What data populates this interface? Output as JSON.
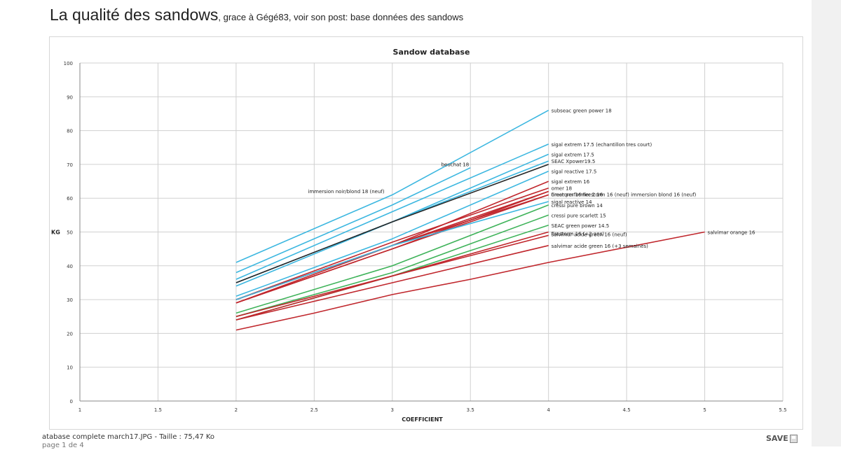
{
  "header": {
    "title": "La qualité des sandows",
    "subtitle": ", grace à Gégé83, voir son post: base données des sandows"
  },
  "footer": {
    "file_info": "atabase complete march17.JPG - Taille : 75,47 Ko",
    "page_info": "page 1 de 4",
    "save_label": "SAVE"
  },
  "colors": {
    "blue": "#3cb7e0",
    "black": "#262626",
    "red": "#c0272d",
    "green": "#3fb35a",
    "grid": "#d0d0d0"
  },
  "chart_data": {
    "type": "line",
    "title": "Sandow database",
    "xlabel": "COEFFICIENT",
    "ylabel": "KG",
    "xlim": [
      1,
      5.5
    ],
    "ylim": [
      0,
      100
    ],
    "xticks": [
      1,
      1.5,
      2,
      2.5,
      3,
      3.5,
      4,
      4.5,
      5,
      5.5
    ],
    "xtick_labels": [
      "1",
      "1.5",
      "2",
      "2.5",
      "3",
      "3.5",
      "4",
      "4.5",
      "5",
      "5.5"
    ],
    "yticks": [
      0,
      10,
      20,
      30,
      40,
      50,
      60,
      70,
      80,
      90,
      100
    ],
    "ytick_labels": [
      "0",
      "10",
      "20",
      "30",
      "40",
      "50",
      "60",
      "70",
      "80",
      "90",
      "100"
    ],
    "grid": true,
    "series": [
      {
        "name": "subseac green power 18",
        "color": "blue",
        "x": [
          2,
          3,
          4
        ],
        "y": [
          41,
          61,
          86
        ]
      },
      {
        "name": "beuchat 18",
        "color": "blue",
        "x": [
          2,
          3,
          3.5
        ],
        "y": [
          38,
          58,
          69
        ]
      },
      {
        "name": "sigal extrem 17.5 (echantillon tres court)",
        "color": "blue",
        "x": [
          2,
          3,
          4
        ],
        "y": [
          36,
          56,
          76
        ]
      },
      {
        "name": "sigal extrem 17.5",
        "color": "blue",
        "x": [
          2,
          3,
          4
        ],
        "y": [
          35,
          53,
          73
        ]
      },
      {
        "name": "SEAC Xpower19.5",
        "color": "blue",
        "x": [
          2,
          3,
          4
        ],
        "y": [
          34,
          53,
          71
        ]
      },
      {
        "name": "immersion noir/blond 18 (neuf)",
        "color": "black",
        "x": [
          2,
          3,
          4
        ],
        "y": [
          35,
          53,
          70
        ]
      },
      {
        "name": "sigal reactive 17.5",
        "color": "blue",
        "x": [
          2,
          3,
          4
        ],
        "y": [
          31,
          48,
          68
        ]
      },
      {
        "name": "sigal extrem 16",
        "color": "red",
        "x": [
          2,
          3,
          4
        ],
        "y": [
          30,
          46,
          65
        ]
      },
      {
        "name": "omer 18",
        "color": "red",
        "x": [
          2,
          3,
          4
        ],
        "y": [
          30,
          47,
          63
        ]
      },
      {
        "name": "firestorm 16",
        "color": "red",
        "x": [
          2,
          3,
          4
        ],
        "y": [
          29,
          45,
          62
        ]
      },
      {
        "name": "firestorm 16 (neuf)",
        "color": "red",
        "x": [
          2,
          3,
          4
        ],
        "y": [
          30,
          46,
          61
        ]
      },
      {
        "name": "immersion blond 16 (neuf)",
        "color": "red",
        "x": [
          2,
          3,
          4
        ],
        "y": [
          29,
          46,
          62
        ]
      },
      {
        "name": "omer performer 2 16",
        "color": "red",
        "x": [
          2,
          3,
          4
        ],
        "y": [
          29,
          45,
          61
        ]
      },
      {
        "name": "sigal reactive 14",
        "color": "blue",
        "x": [
          2,
          3,
          4
        ],
        "y": [
          30,
          46,
          59
        ]
      },
      {
        "name": "cressi pure brown 14",
        "color": "green",
        "x": [
          2,
          3,
          4
        ],
        "y": [
          26,
          40,
          58
        ]
      },
      {
        "name": "cressi pure scarlett 15",
        "color": "green",
        "x": [
          2,
          3,
          4
        ],
        "y": [
          25,
          38,
          55
        ]
      },
      {
        "name": "SEAC green power 14.5",
        "color": "green",
        "x": [
          2,
          3,
          4
        ],
        "y": [
          24,
          37,
          52
        ]
      },
      {
        "name": "firestorm 16 (+2 ans)",
        "color": "red",
        "x": [
          2,
          3,
          4
        ],
        "y": [
          25,
          37,
          50
        ]
      },
      {
        "name": "salvimar acide green 16 (neuf)",
        "color": "red",
        "x": [
          2,
          3,
          4
        ],
        "y": [
          24,
          37,
          49
        ]
      },
      {
        "name": "salvimar acide green 16 (+3 semaines)",
        "color": "red",
        "x": [
          2,
          3,
          4
        ],
        "y": [
          24,
          35,
          46
        ]
      },
      {
        "name": "salvimar orange 16",
        "color": "red",
        "x": [
          2,
          2.5,
          3,
          3.5,
          4,
          5
        ],
        "y": [
          21,
          26,
          31.5,
          36,
          41,
          50
        ]
      }
    ],
    "labels": [
      {
        "series": 0,
        "text": "subseac green power 18",
        "anchor": "end"
      },
      {
        "series": 1,
        "text": "beuchat 18",
        "anchor": "end-above"
      },
      {
        "series": 2,
        "text": "sigal extrem 17.5 (echantillon tres court)",
        "anchor": "end"
      },
      {
        "series": 3,
        "text": "sigal extrem 17.5",
        "anchor": "end"
      },
      {
        "series": 4,
        "text": "SEAC Xpower19.5",
        "anchor": "end"
      },
      {
        "series": 5,
        "text": "immersion noir/blond 18 (neuf)",
        "anchor": "mid-left"
      },
      {
        "series": 6,
        "text": "sigal reactive 17.5",
        "anchor": "end"
      },
      {
        "series": 7,
        "text": "sigal extrem 16",
        "anchor": "end"
      },
      {
        "series": 8,
        "text": "omer 18",
        "anchor": "end"
      },
      {
        "series": 9,
        "text": "firestorm 16 firestorm 16 (neuf) immersion blond 16 (neuf)",
        "anchor": "end"
      },
      {
        "series": 12,
        "text": "omer performer 2 16",
        "anchor": "end"
      },
      {
        "series": 13,
        "text": "sigal reactive 14",
        "anchor": "end"
      },
      {
        "series": 14,
        "text": "cressi pure brown 14",
        "anchor": "end"
      },
      {
        "series": 15,
        "text": "cressi pure scarlett 15",
        "anchor": "end"
      },
      {
        "series": 16,
        "text": "SEAC green power 14.5",
        "anchor": "end"
      },
      {
        "series": 17,
        "text": "firestorm 16 (+2 ans)",
        "anchor": "end"
      },
      {
        "series": 18,
        "text": "salvimar acide green 16 (neuf)",
        "anchor": "end"
      },
      {
        "series": 19,
        "text": "salvimar acide green 16 (+3 semaines)",
        "anchor": "end"
      },
      {
        "series": 20,
        "text": "salvimar orange 16",
        "anchor": "end"
      }
    ]
  }
}
